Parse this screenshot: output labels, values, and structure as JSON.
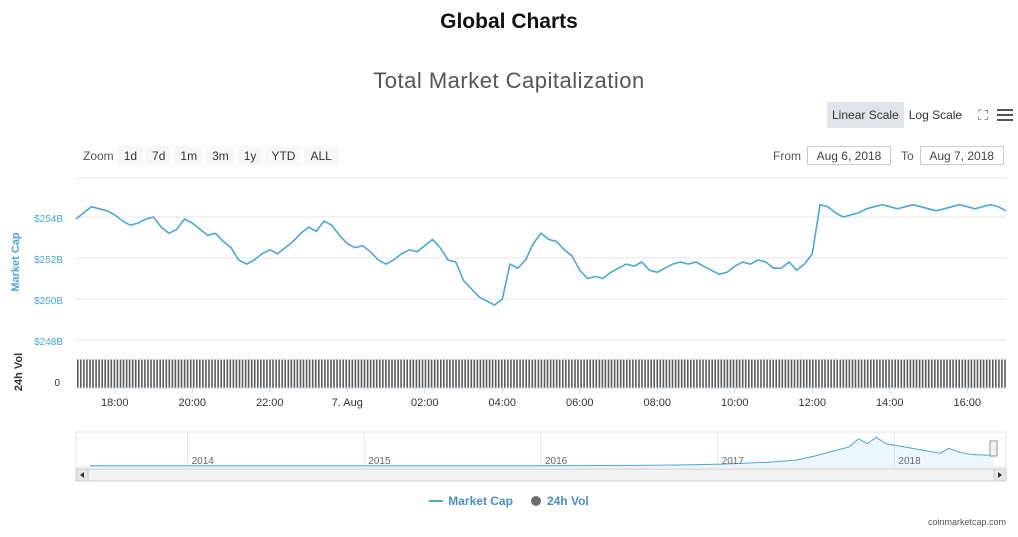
{
  "page_title": "Global Charts",
  "controls": {
    "linear_scale": "Linear Scale",
    "log_scale": "Log Scale",
    "fullscreen_icon": "fullscreen-icon",
    "menu_icon": "menu-icon",
    "zoom_label": "Zoom",
    "zoom_options": [
      "1d",
      "7d",
      "1m",
      "3m",
      "1y",
      "YTD",
      "ALL"
    ],
    "zoom_selected": "1d",
    "from_label": "From",
    "from_value": "Aug 6, 2018",
    "to_label": "To",
    "to_value": "Aug 7, 2018"
  },
  "chart_data": {
    "type": "line",
    "title": "Total Market Capitalization",
    "ylabel": "Market Cap",
    "y2label": "24h Vol",
    "unit": "USD billions",
    "ylim": [
      248,
      256
    ],
    "yticks": [
      "$254B",
      "$252B",
      "$250B",
      "$248B"
    ],
    "y2ticks": [
      "0"
    ],
    "xlim": [
      17,
      41
    ],
    "xticks": [
      {
        "x": 18,
        "label": "18:00"
      },
      {
        "x": 20,
        "label": "20:00"
      },
      {
        "x": 22,
        "label": "22:00"
      },
      {
        "x": 24,
        "label": "7. Aug"
      },
      {
        "x": 26,
        "label": "02:00"
      },
      {
        "x": 28,
        "label": "04:00"
      },
      {
        "x": 30,
        "label": "06:00"
      },
      {
        "x": 32,
        "label": "08:00"
      },
      {
        "x": 34,
        "label": "10:00"
      },
      {
        "x": 36,
        "label": "12:00"
      },
      {
        "x": 38,
        "label": "14:00"
      },
      {
        "x": 40,
        "label": "16:00"
      }
    ],
    "series": [
      {
        "name": "Market Cap",
        "color": "#4aa7d8",
        "points": [
          [
            17.0,
            254.0
          ],
          [
            17.2,
            254.3
          ],
          [
            17.4,
            254.6
          ],
          [
            17.6,
            254.5
          ],
          [
            17.8,
            254.4
          ],
          [
            18.0,
            254.2
          ],
          [
            18.2,
            253.9
          ],
          [
            18.4,
            253.7
          ],
          [
            18.6,
            253.8
          ],
          [
            18.8,
            254.0
          ],
          [
            19.0,
            254.1
          ],
          [
            19.2,
            253.6
          ],
          [
            19.4,
            253.3
          ],
          [
            19.6,
            253.5
          ],
          [
            19.8,
            254.0
          ],
          [
            20.0,
            253.8
          ],
          [
            20.2,
            253.5
          ],
          [
            20.4,
            253.2
          ],
          [
            20.6,
            253.3
          ],
          [
            20.8,
            252.9
          ],
          [
            21.0,
            252.6
          ],
          [
            21.2,
            252.0
          ],
          [
            21.4,
            251.8
          ],
          [
            21.6,
            252.0
          ],
          [
            21.8,
            252.3
          ],
          [
            22.0,
            252.5
          ],
          [
            22.2,
            252.3
          ],
          [
            22.4,
            252.6
          ],
          [
            22.6,
            252.9
          ],
          [
            22.8,
            253.3
          ],
          [
            23.0,
            253.6
          ],
          [
            23.2,
            253.4
          ],
          [
            23.4,
            253.9
          ],
          [
            23.6,
            253.7
          ],
          [
            23.8,
            253.2
          ],
          [
            24.0,
            252.8
          ],
          [
            24.2,
            252.6
          ],
          [
            24.4,
            252.7
          ],
          [
            24.6,
            252.4
          ],
          [
            24.8,
            252.0
          ],
          [
            25.0,
            251.8
          ],
          [
            25.2,
            252.0
          ],
          [
            25.4,
            252.3
          ],
          [
            25.6,
            252.5
          ],
          [
            25.8,
            252.4
          ],
          [
            26.0,
            252.7
          ],
          [
            26.2,
            253.0
          ],
          [
            26.4,
            252.6
          ],
          [
            26.6,
            252.0
          ],
          [
            26.8,
            251.9
          ],
          [
            27.0,
            251.0
          ],
          [
            27.2,
            250.6
          ],
          [
            27.4,
            250.2
          ],
          [
            27.6,
            250.0
          ],
          [
            27.8,
            249.8
          ],
          [
            28.0,
            250.1
          ],
          [
            28.2,
            251.8
          ],
          [
            28.4,
            251.6
          ],
          [
            28.6,
            252.0
          ],
          [
            28.8,
            252.8
          ],
          [
            29.0,
            253.3
          ],
          [
            29.2,
            253.0
          ],
          [
            29.4,
            252.9
          ],
          [
            29.6,
            252.5
          ],
          [
            29.8,
            252.2
          ],
          [
            30.0,
            251.5
          ],
          [
            30.2,
            251.1
          ],
          [
            30.4,
            251.2
          ],
          [
            30.6,
            251.1
          ],
          [
            30.8,
            251.4
          ],
          [
            31.0,
            251.6
          ],
          [
            31.2,
            251.8
          ],
          [
            31.4,
            251.7
          ],
          [
            31.6,
            251.9
          ],
          [
            31.8,
            251.5
          ],
          [
            32.0,
            251.4
          ],
          [
            32.2,
            251.6
          ],
          [
            32.4,
            251.8
          ],
          [
            32.6,
            251.9
          ],
          [
            32.8,
            251.8
          ],
          [
            33.0,
            251.9
          ],
          [
            33.2,
            251.7
          ],
          [
            33.4,
            251.5
          ],
          [
            33.6,
            251.3
          ],
          [
            33.8,
            251.4
          ],
          [
            34.0,
            251.7
          ],
          [
            34.2,
            251.9
          ],
          [
            34.4,
            251.8
          ],
          [
            34.6,
            252.0
          ],
          [
            34.8,
            251.9
          ],
          [
            35.0,
            251.6
          ],
          [
            35.2,
            251.6
          ],
          [
            35.4,
            251.9
          ],
          [
            35.6,
            251.5
          ],
          [
            35.8,
            251.8
          ],
          [
            36.0,
            252.3
          ],
          [
            36.2,
            254.7
          ],
          [
            36.4,
            254.6
          ],
          [
            36.6,
            254.3
          ],
          [
            36.8,
            254.1
          ],
          [
            37.0,
            254.2
          ],
          [
            37.2,
            254.3
          ],
          [
            37.4,
            254.5
          ],
          [
            37.6,
            254.6
          ],
          [
            37.8,
            254.7
          ],
          [
            38.0,
            254.6
          ],
          [
            38.2,
            254.5
          ],
          [
            38.4,
            254.6
          ],
          [
            38.6,
            254.7
          ],
          [
            38.8,
            254.6
          ],
          [
            39.0,
            254.5
          ],
          [
            39.2,
            254.4
          ],
          [
            39.4,
            254.5
          ],
          [
            39.6,
            254.6
          ],
          [
            39.8,
            254.7
          ],
          [
            40.0,
            254.6
          ],
          [
            40.2,
            254.5
          ],
          [
            40.4,
            254.6
          ],
          [
            40.6,
            254.7
          ],
          [
            40.8,
            254.6
          ],
          [
            41.0,
            254.4
          ]
        ]
      },
      {
        "name": "24h Vol",
        "color": "#6e6e6e",
        "shown_as": "bars",
        "relative_level": 0.95
      }
    ],
    "navigator": {
      "labels": [
        "2014",
        "2015",
        "2016",
        "2017",
        "2018"
      ],
      "relative_series": [
        [
          0.0,
          0.01
        ],
        [
          0.1,
          0.01
        ],
        [
          0.2,
          0.01
        ],
        [
          0.3,
          0.01
        ],
        [
          0.4,
          0.01
        ],
        [
          0.5,
          0.01
        ],
        [
          0.6,
          0.02
        ],
        [
          0.65,
          0.03
        ],
        [
          0.7,
          0.06
        ],
        [
          0.72,
          0.08
        ],
        [
          0.75,
          0.12
        ],
        [
          0.78,
          0.18
        ],
        [
          0.8,
          0.3
        ],
        [
          0.82,
          0.45
        ],
        [
          0.84,
          0.6
        ],
        [
          0.85,
          0.85
        ],
        [
          0.86,
          0.7
        ],
        [
          0.87,
          0.9
        ],
        [
          0.88,
          0.7
        ],
        [
          0.9,
          0.6
        ],
        [
          0.92,
          0.5
        ],
        [
          0.94,
          0.4
        ],
        [
          0.95,
          0.55
        ],
        [
          0.96,
          0.45
        ],
        [
          0.97,
          0.38
        ],
        [
          0.98,
          0.35
        ],
        [
          1.0,
          0.33
        ]
      ]
    },
    "legend": "bottom-center",
    "grid": true
  },
  "footer": {
    "credit": "coinmarketcap.com"
  }
}
